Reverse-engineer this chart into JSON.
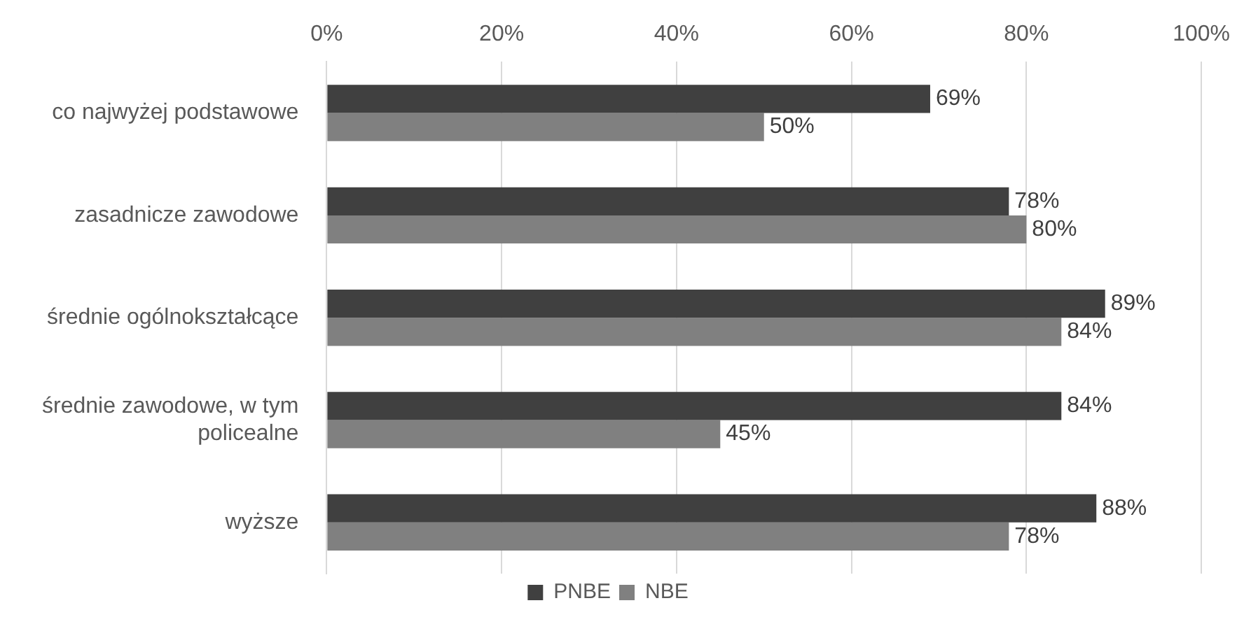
{
  "chart_data": {
    "type": "bar",
    "orientation": "horizontal",
    "categories": [
      "co najwyżej podstawowe",
      "zasadnicze zawodowe",
      "średnie ogólnokształcące",
      "średnie zawodowe, w tym policealne",
      "wyższe"
    ],
    "series": [
      {
        "name": "PNBE",
        "color": "#404040",
        "values": [
          69,
          78,
          89,
          84,
          88
        ],
        "value_labels": [
          "69%",
          "78%",
          "89%",
          "84%",
          "88%"
        ]
      },
      {
        "name": "NBE",
        "color": "#808080",
        "values": [
          50,
          80,
          84,
          45,
          78
        ],
        "value_labels": [
          "50%",
          "80%",
          "84%",
          "45%",
          "78%"
        ]
      }
    ],
    "xlim": [
      0,
      100
    ],
    "xticks": [
      {
        "value": 0,
        "label": "0%"
      },
      {
        "value": 20,
        "label": "20%"
      },
      {
        "value": 40,
        "label": "40%"
      },
      {
        "value": 60,
        "label": "60%"
      },
      {
        "value": 80,
        "label": "80%"
      },
      {
        "value": 100,
        "label": "100%"
      }
    ],
    "grid": "x",
    "legend": "bottom"
  }
}
